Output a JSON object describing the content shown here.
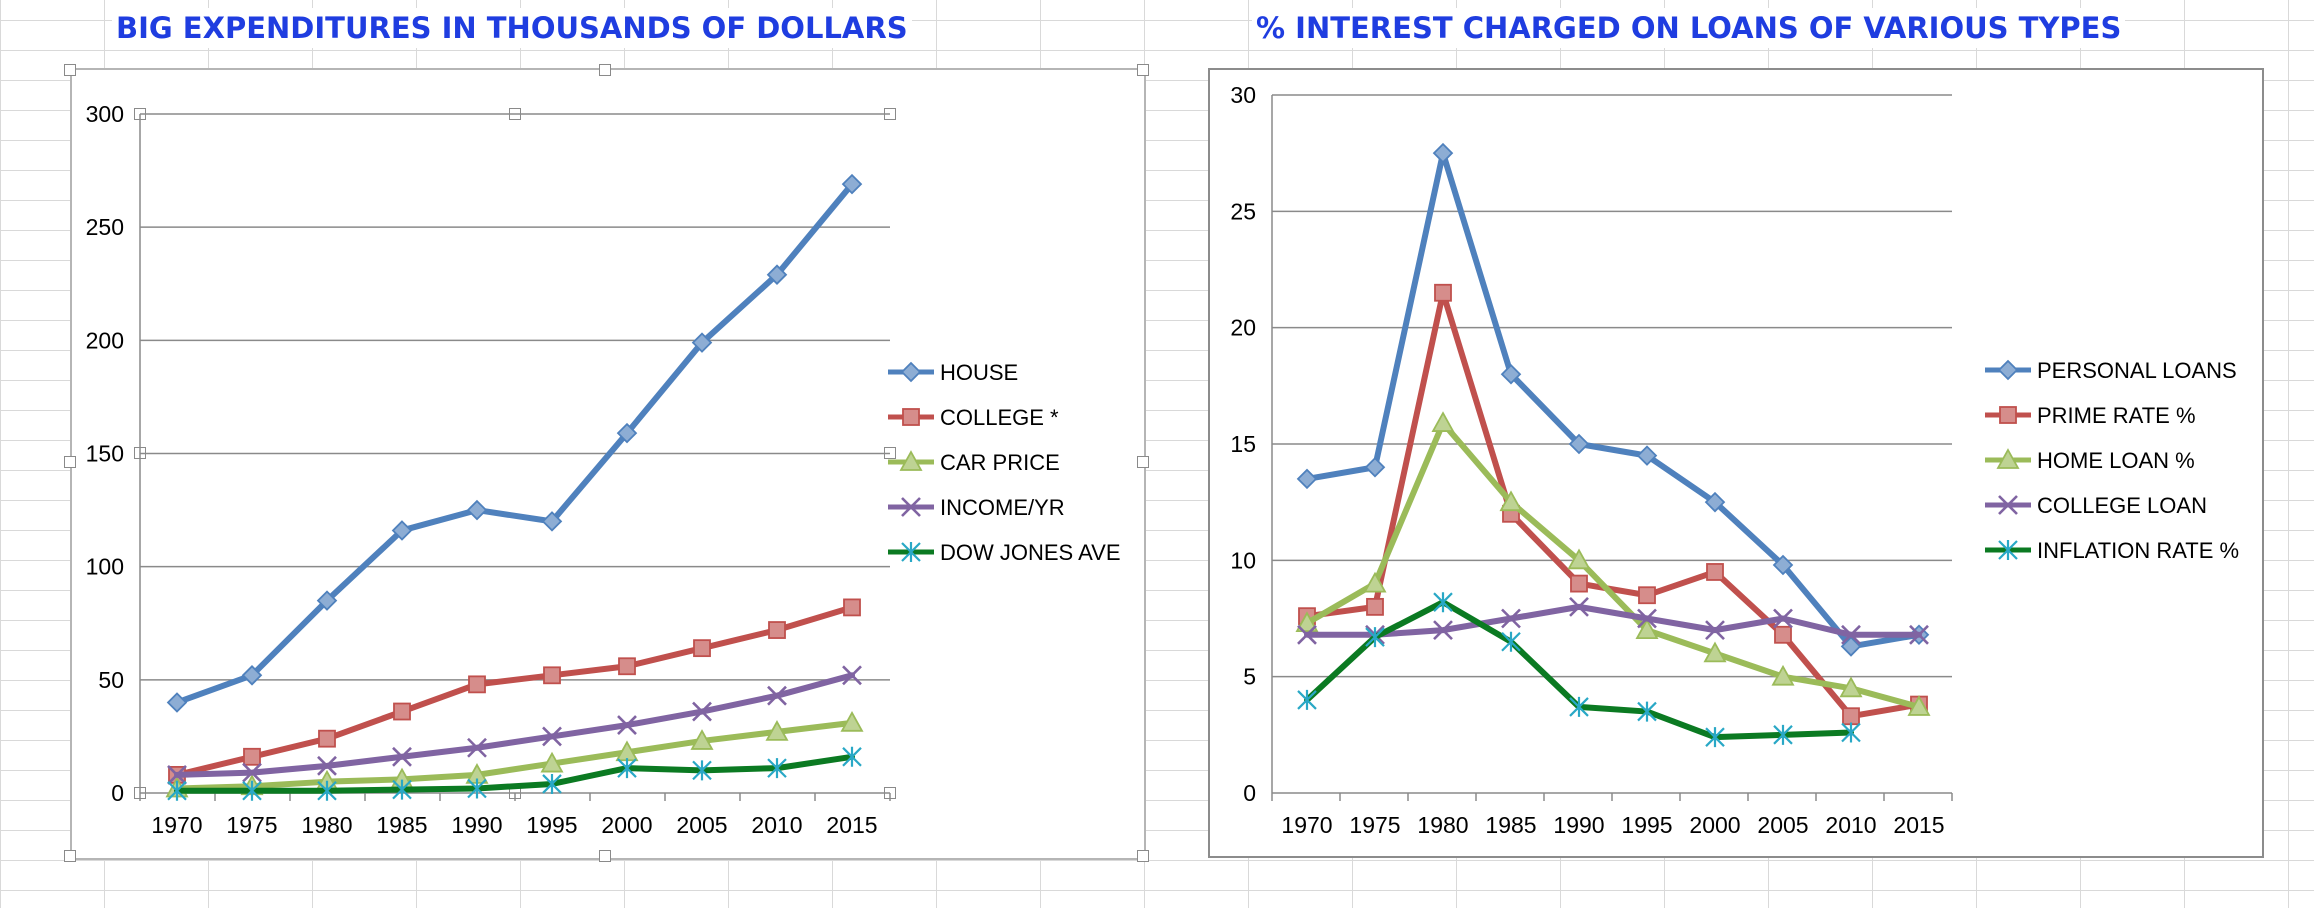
{
  "chart_data": [
    {
      "type": "line",
      "title": "BIG EXPENDITURES IN THOUSANDS OF DOLLARS",
      "categories": [
        "1970",
        "1975",
        "1980",
        "1985",
        "1990",
        "1995",
        "2000",
        "2005",
        "2010",
        "2015"
      ],
      "ylim": [
        0,
        300
      ],
      "yticks": [
        "0",
        "50",
        "100",
        "150",
        "200",
        "250",
        "300"
      ],
      "grid": true,
      "legend": "right",
      "series": [
        {
          "name": "HOUSE",
          "color": "#4f81bd",
          "marker": "diamond",
          "values": [
            40,
            52,
            85,
            116,
            125,
            120,
            159,
            199,
            229,
            269
          ]
        },
        {
          "name": "COLLEGE *",
          "color": "#c0504d",
          "marker": "square",
          "values": [
            8,
            16,
            24,
            36,
            48,
            52,
            56,
            64,
            72,
            82
          ]
        },
        {
          "name": "CAR PRICE",
          "color": "#9bbb59",
          "marker": "triangle",
          "values": [
            2,
            3,
            5,
            6,
            8,
            13,
            18,
            23,
            27,
            31
          ]
        },
        {
          "name": "INCOME/YR",
          "color": "#8064a2",
          "marker": "x",
          "values": [
            8,
            9,
            12,
            16,
            20,
            25,
            30,
            36,
            43,
            52
          ]
        },
        {
          "name": "DOW JONES AVE",
          "color": "#0b7a22",
          "marker": "star",
          "values": [
            1,
            1,
            1,
            1.5,
            2,
            4,
            11,
            10,
            11,
            16
          ]
        }
      ]
    },
    {
      "type": "line",
      "title": "% INTEREST CHARGED ON LOANS OF VARIOUS TYPES",
      "categories": [
        "1970",
        "1975",
        "1980",
        "1985",
        "1990",
        "1995",
        "2000",
        "2005",
        "2010",
        "2015"
      ],
      "ylim": [
        0,
        30
      ],
      "yticks": [
        "0",
        "5",
        "10",
        "15",
        "20",
        "25",
        "30"
      ],
      "grid": true,
      "legend": "right",
      "series": [
        {
          "name": "PERSONAL LOANS",
          "color": "#4f81bd",
          "marker": "diamond",
          "values": [
            13.5,
            14,
            27.5,
            18,
            15,
            14.5,
            12.5,
            9.8,
            6.3,
            6.8
          ]
        },
        {
          "name": "PRIME RATE %",
          "color": "#c0504d",
          "marker": "square",
          "values": [
            7.6,
            8,
            21.5,
            12,
            9,
            8.5,
            9.5,
            6.8,
            3.3,
            3.8
          ]
        },
        {
          "name": "HOME LOAN %",
          "color": "#9bbb59",
          "marker": "triangle",
          "values": [
            7.3,
            9,
            15.9,
            12.5,
            10,
            7,
            6,
            5,
            4.5,
            3.7
          ]
        },
        {
          "name": "COLLEGE LOAN",
          "color": "#8064a2",
          "marker": "x",
          "values": [
            6.8,
            6.8,
            7,
            7.5,
            8,
            7.5,
            7,
            7.5,
            6.8,
            6.8
          ]
        },
        {
          "name": "INFLATION RATE %",
          "color": "#0b7a22",
          "marker": "star",
          "values": [
            4,
            6.7,
            8.2,
            6.5,
            3.7,
            3.5,
            2.4,
            2.5,
            2.6,
            null
          ]
        }
      ]
    }
  ]
}
